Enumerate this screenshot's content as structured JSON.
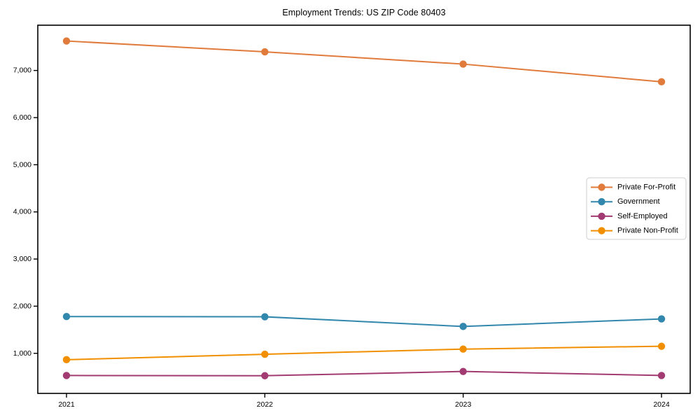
{
  "chart_data": {
    "type": "line",
    "title": "Employment Trends: US ZIP Code 80403",
    "x": [
      2021,
      2022,
      2023,
      2024
    ],
    "series": [
      {
        "name": "Private For-Profit",
        "color": "#E07B3C",
        "values": [
          7625,
          7395,
          7135,
          6760
        ]
      },
      {
        "name": "Government",
        "color": "#3287AC",
        "values": [
          1780,
          1775,
          1570,
          1730
        ]
      },
      {
        "name": "Self-Employed",
        "color": "#A23B72",
        "values": [
          530,
          525,
          615,
          530
        ]
      },
      {
        "name": "Private Non-Profit",
        "color": "#F18F01",
        "values": [
          865,
          980,
          1090,
          1150
        ]
      }
    ],
    "ylim": [
      150,
      7960
    ],
    "yticks": [
      1000,
      2000,
      3000,
      4000,
      5000,
      6000,
      7000
    ],
    "ytick_format": "comma",
    "xlabel": "",
    "ylabel": "",
    "grid": false,
    "legend_position": "center-right",
    "marker": "circle",
    "axis_color": "#000000",
    "legend_border_color": "#cccccc",
    "background_color": "#ffffff"
  }
}
